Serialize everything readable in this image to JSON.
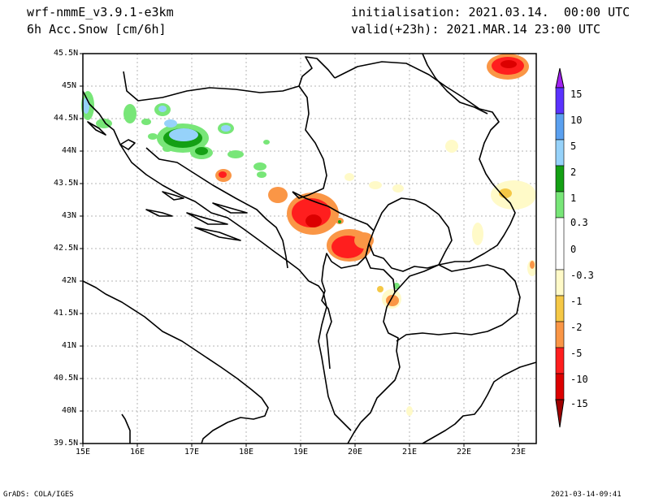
{
  "header": {
    "model": "wrf-nmmE_v3.9.1-e3km",
    "field": "6h Acc.Snow [cm/6h]",
    "init": "initialisation: 2021.03.14.  00:00 UTC",
    "valid": "valid(+23h): 2021.MAR.14 23:00 UTC"
  },
  "axes": {
    "lat_labels": [
      "45.5N",
      "45N",
      "44.5N",
      "44N",
      "43.5N",
      "43N",
      "42.5N",
      "42N",
      "41.5N",
      "41N",
      "40.5N",
      "40N",
      "39.5N"
    ],
    "lon_labels": [
      "15E",
      "16E",
      "17E",
      "18E",
      "19E",
      "20E",
      "21E",
      "22E",
      "23E"
    ]
  },
  "colorbar": {
    "labels": [
      "15",
      "10",
      "5",
      "2",
      "1",
      "0.3",
      "0",
      "-0.3",
      "-1",
      "-2",
      "-5",
      "-10",
      "-15"
    ],
    "colors": [
      "#5a32ff",
      "#5aa0f0",
      "#96d2fa",
      "#14a014",
      "#78e678",
      "#ffffff",
      "#ffffff",
      "#fffac8",
      "#f5c846",
      "#fa9646",
      "#ff1e1e",
      "#dc0000",
      "#a00000"
    ]
  },
  "footer": {
    "left": "GrADS: COLA/IGES",
    "right": "2021-03-14-09:41"
  }
}
